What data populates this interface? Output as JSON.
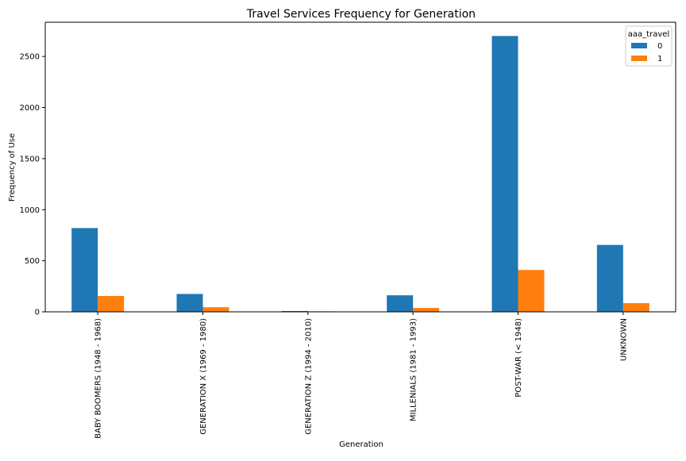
{
  "chart_data": {
    "type": "bar",
    "title": "Travel Services Frequency for Generation",
    "xlabel": "Generation",
    "ylabel": "Frequency of Use",
    "categories": [
      "BABY BOOMERS (1948 - 1968)",
      "GENERATION X (1969 - 1980)",
      "GENERATION Z (1994 - 2010)",
      "MILLENIALS (1981 - 1993)",
      "POST-WAR (< 1948)",
      "UNKNOWN"
    ],
    "series": [
      {
        "name": "0",
        "color": "#1f77b4",
        "values": [
          820,
          175,
          8,
          162,
          2700,
          655
        ]
      },
      {
        "name": "1",
        "color": "#ff7f0e",
        "values": [
          155,
          45,
          5,
          38,
          410,
          85
        ]
      }
    ],
    "yticks": [
      0,
      500,
      1000,
      1500,
      2000,
      2500
    ],
    "ylim": [
      0,
      2835
    ],
    "grid": false,
    "legend": {
      "title": "aaa_travel",
      "position": "top-right"
    }
  }
}
